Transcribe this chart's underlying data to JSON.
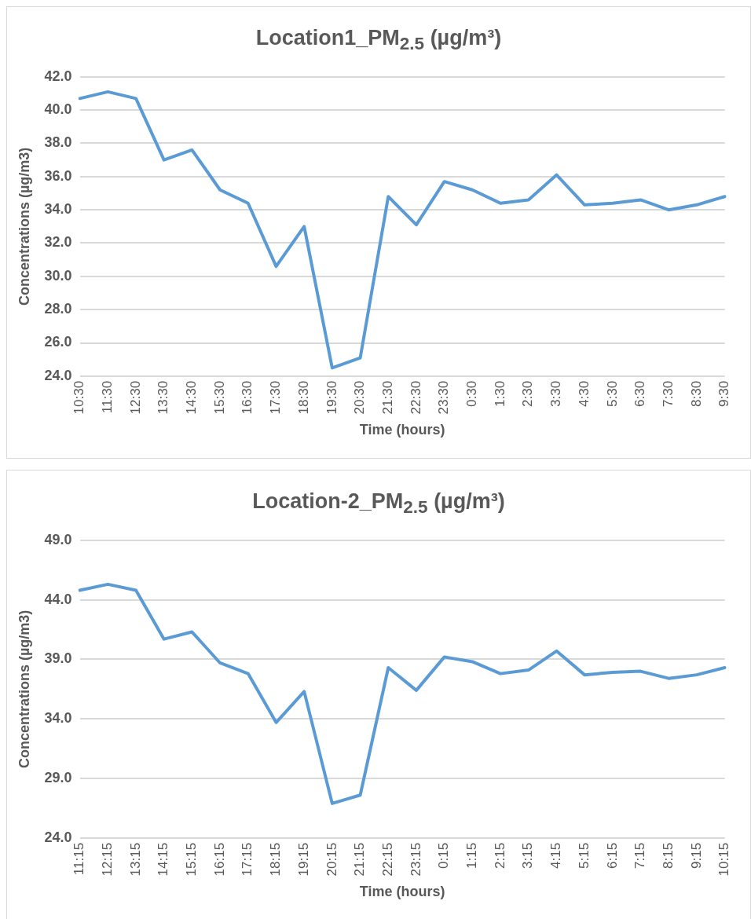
{
  "chart_data": [
    {
      "type": "line",
      "title": "Location1_PM$_{2.5}$ (µg/m³)",
      "xlabel": "Time (hours)",
      "ylabel": "Concentrations (µg/m3)",
      "categories": [
        "10:30",
        "11:30",
        "12:30",
        "13:30",
        "14:30",
        "15:30",
        "16:30",
        "17:30",
        "18:30",
        "19:30",
        "20:30",
        "21:30",
        "22:30",
        "23:30",
        "0:30",
        "1:30",
        "2:30",
        "3:30",
        "4:30",
        "5:30",
        "6:30",
        "7:30",
        "8:30",
        "9:30"
      ],
      "series": [
        {
          "color": "#5b9bd5",
          "values": [
            40.7,
            41.1,
            40.7,
            37.0,
            37.6,
            35.2,
            34.4,
            30.6,
            33.0,
            24.5,
            25.1,
            34.8,
            33.1,
            35.7,
            35.2,
            34.4,
            34.6,
            36.1,
            34.3,
            34.4,
            34.6,
            34.0,
            34.3,
            34.8
          ]
        }
      ],
      "ylim": [
        24,
        42
      ],
      "yticks": [
        {
          "value": 24,
          "label": "24.0"
        },
        {
          "value": 26,
          "label": "26.0"
        },
        {
          "value": 28,
          "label": "28.0"
        },
        {
          "value": 30,
          "label": "30.0"
        },
        {
          "value": 32,
          "label": "32.0"
        },
        {
          "value": 34,
          "label": "34.0"
        },
        {
          "value": 36,
          "label": "36.0"
        },
        {
          "value": 38,
          "label": "38.0"
        },
        {
          "value": 40,
          "label": "40.0"
        },
        {
          "value": 42,
          "label": "42.0"
        }
      ],
      "grid": "y",
      "legend": false,
      "marker": "none",
      "line_style": "solid"
    },
    {
      "type": "line",
      "title": "Location-2_PM$_{2.5}$ (µg/m³)",
      "xlabel": "Time (hours)",
      "ylabel": "Concentrations (µg/m3)",
      "categories": [
        "11:15",
        "12:15",
        "13:15",
        "14:15",
        "15:15",
        "16:15",
        "17:15",
        "18:15",
        "19:15",
        "20:15",
        "21:15",
        "22:15",
        "23:15",
        "0:15",
        "1:15",
        "2:15",
        "3:15",
        "4:15",
        "5:15",
        "6:15",
        "7:15",
        "8:15",
        "9:15",
        "10:15"
      ],
      "series": [
        {
          "color": "#5b9bd5",
          "values": [
            44.8,
            45.3,
            44.8,
            40.7,
            41.3,
            38.7,
            37.8,
            33.7,
            36.3,
            26.9,
            27.6,
            38.3,
            36.4,
            39.2,
            38.8,
            37.8,
            38.1,
            39.7,
            37.7,
            37.9,
            38.0,
            37.4,
            37.7,
            38.3
          ]
        }
      ],
      "ylim": [
        24,
        49
      ],
      "yticks": [
        {
          "value": 24,
          "label": "24.0"
        },
        {
          "value": 29,
          "label": "29.0"
        },
        {
          "value": 34,
          "label": "34.0"
        },
        {
          "value": 39,
          "label": "39.0"
        },
        {
          "value": 44,
          "label": "44.0"
        },
        {
          "value": 49,
          "label": "49.0"
        }
      ],
      "grid": "y",
      "legend": false,
      "marker": "none",
      "line_style": "solid"
    }
  ]
}
